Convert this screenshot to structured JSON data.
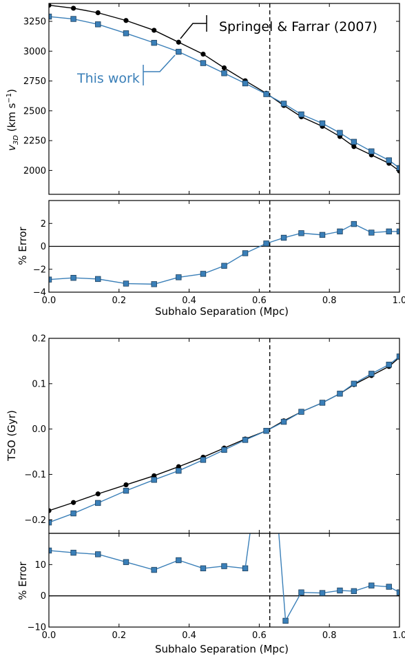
{
  "colors": {
    "blue": "#3a7fb8",
    "black": "#000000"
  },
  "chart_data": [
    {
      "type": "line",
      "ylabel_main": "v",
      "ylabel_sub": "3D",
      "ylabel_unit": "(km s",
      "ylabel_exp": "−1",
      "ylabel_close": ")",
      "xlim": [
        0,
        1.0
      ],
      "ylim": [
        1800,
        3400
      ],
      "yticks": [
        "2000",
        "2250",
        "2500",
        "2750",
        "3000",
        "3250"
      ],
      "ytick_values": [
        2000,
        2250,
        2500,
        2750,
        3000,
        3250
      ],
      "vline_x": 0.63,
      "annotations": {
        "reference": "Springel & Farrar (2007)",
        "this_work": "This work"
      },
      "series": [
        {
          "name": "Springel & Farrar (2007)",
          "color": "#000000",
          "marker": "circle",
          "x": [
            0.0,
            0.07,
            0.14,
            0.22,
            0.3,
            0.37,
            0.44,
            0.5,
            0.56,
            0.62,
            0.67,
            0.72,
            0.78,
            0.83,
            0.87,
            0.92,
            0.97,
            1.0
          ],
          "y": [
            3385,
            3360,
            3322,
            3257,
            3175,
            3075,
            2975,
            2860,
            2752,
            2647,
            2545,
            2450,
            2370,
            2285,
            2200,
            2130,
            2060,
            1995
          ]
        },
        {
          "name": "This work",
          "color": "#3a7fb8",
          "marker": "square",
          "x": [
            0.0,
            0.07,
            0.14,
            0.22,
            0.3,
            0.37,
            0.44,
            0.5,
            0.56,
            0.62,
            0.67,
            0.72,
            0.78,
            0.83,
            0.87,
            0.92,
            0.97,
            1.0
          ],
          "y": [
            3290,
            3270,
            3225,
            3150,
            3070,
            2995,
            2900,
            2815,
            2730,
            2640,
            2560,
            2470,
            2395,
            2315,
            2240,
            2160,
            2085,
            2020
          ]
        }
      ]
    },
    {
      "type": "line",
      "ylabel": "% Error",
      "xlabel": "Subhalo Separation (Mpc)",
      "xlim": [
        0,
        1.0
      ],
      "ylim": [
        -4,
        4
      ],
      "yticks": [
        "−4",
        "−2",
        "0",
        "2"
      ],
      "ytick_values": [
        -4,
        -2,
        0,
        2
      ],
      "xticks": [
        "0.0",
        "0.2",
        "0.4",
        "0.6",
        "0.8",
        "1.0"
      ],
      "xtick_values": [
        0,
        0.2,
        0.4,
        0.6,
        0.8,
        1.0
      ],
      "vline_x": 0.63,
      "hline_y": 0,
      "series": [
        {
          "name": "This work",
          "color": "#3a7fb8",
          "marker": "square",
          "x": [
            0.0,
            0.07,
            0.14,
            0.22,
            0.3,
            0.37,
            0.44,
            0.5,
            0.56,
            0.62,
            0.67,
            0.72,
            0.78,
            0.83,
            0.87,
            0.92,
            0.97,
            1.0
          ],
          "y": [
            -2.9,
            -2.75,
            -2.85,
            -3.25,
            -3.3,
            -2.7,
            -2.4,
            -1.7,
            -0.6,
            0.25,
            0.75,
            1.15,
            1.0,
            1.3,
            1.95,
            1.2,
            1.3,
            1.3
          ]
        }
      ]
    },
    {
      "type": "line",
      "ylabel": "TSO (Gyr)",
      "xlim": [
        0,
        1.0
      ],
      "ylim": [
        -0.23,
        0.2
      ],
      "yticks": [
        "−0.2",
        "−0.1",
        "0.0",
        "0.1",
        "0.2"
      ],
      "ytick_values": [
        -0.2,
        -0.1,
        0.0,
        0.1,
        0.2
      ],
      "vline_x": 0.63,
      "series": [
        {
          "name": "Springel & Farrar (2007)",
          "color": "#000000",
          "marker": "circle",
          "x": [
            0.0,
            0.07,
            0.14,
            0.22,
            0.3,
            0.37,
            0.44,
            0.5,
            0.56,
            0.62,
            0.67,
            0.72,
            0.78,
            0.83,
            0.87,
            0.92,
            0.97,
            1.0
          ],
          "y": [
            -0.18,
            -0.162,
            -0.143,
            -0.123,
            -0.103,
            -0.083,
            -0.062,
            -0.042,
            -0.022,
            -0.004,
            0.018,
            0.038,
            0.058,
            0.078,
            0.098,
            0.118,
            0.138,
            0.158
          ]
        },
        {
          "name": "This work",
          "color": "#3a7fb8",
          "marker": "square",
          "x": [
            0.0,
            0.07,
            0.14,
            0.22,
            0.3,
            0.37,
            0.44,
            0.5,
            0.56,
            0.62,
            0.67,
            0.72,
            0.78,
            0.83,
            0.87,
            0.92,
            0.97,
            1.0
          ],
          "y": [
            -0.206,
            -0.186,
            -0.163,
            -0.136,
            -0.112,
            -0.092,
            -0.068,
            -0.046,
            -0.024,
            -0.004,
            0.016,
            0.038,
            0.058,
            0.078,
            0.1,
            0.122,
            0.142,
            0.16
          ]
        }
      ]
    },
    {
      "type": "line",
      "ylabel": "% Error",
      "xlabel": "Subhalo Separation (Mpc)",
      "xlim": [
        0,
        1.0
      ],
      "ylim": [
        -10,
        20
      ],
      "yticks": [
        "−10",
        "0",
        "10"
      ],
      "ytick_values": [
        -10,
        0,
        10
      ],
      "xticks": [
        "0.0",
        "0.2",
        "0.4",
        "0.6",
        "0.8",
        "1.0"
      ],
      "xtick_values": [
        0,
        0.2,
        0.4,
        0.6,
        0.8,
        1.0
      ],
      "vline_x": 0.63,
      "hline_y": 0,
      "series": [
        {
          "name": "This work",
          "color": "#3a7fb8",
          "marker": "square",
          "x": [
            0.0,
            0.07,
            0.14,
            0.22,
            0.3,
            0.37,
            0.44,
            0.5,
            0.56
          ],
          "y": [
            14.5,
            13.8,
            13.3,
            10.8,
            8.3,
            11.4,
            8.8,
            9.5,
            8.8
          ]
        },
        {
          "name": "This work",
          "color": "#3a7fb8",
          "marker": "square",
          "x": [
            0.675,
            0.72,
            0.78,
            0.83,
            0.87,
            0.92,
            0.97,
            1.0
          ],
          "y": [
            -8.0,
            1.1,
            0.9,
            1.7,
            1.5,
            3.3,
            2.9,
            1.1
          ]
        }
      ]
    }
  ]
}
